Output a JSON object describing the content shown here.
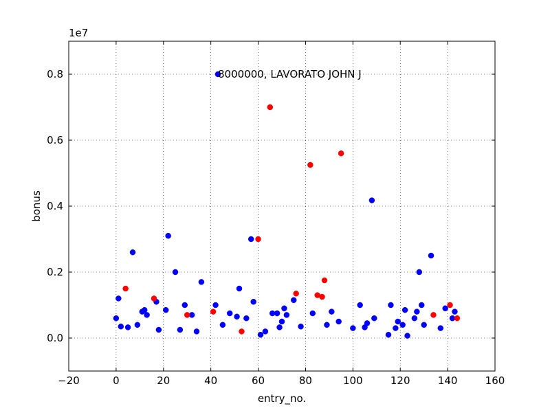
{
  "chart_data": {
    "type": "scatter",
    "title": "",
    "xlabel": "entry_no.",
    "ylabel": "bonus",
    "y_offset_label": "1e7",
    "xlim": [
      -20,
      160
    ],
    "ylim": [
      -1000000,
      9000000
    ],
    "x_ticks": [
      -20,
      0,
      20,
      40,
      60,
      80,
      100,
      120,
      140,
      160
    ],
    "x_tick_labels": [
      "−20",
      "0",
      "20",
      "40",
      "60",
      "80",
      "100",
      "120",
      "140",
      "160"
    ],
    "y_ticks": [
      0,
      2000000,
      4000000,
      6000000,
      8000000
    ],
    "y_tick_labels": [
      "0.0",
      "0.2",
      "0.4",
      "0.6",
      "0.8"
    ],
    "grid": true,
    "annotation": {
      "text": "8000000, LAVORATO JOHN J",
      "x": 43,
      "y": 8000000
    },
    "series": [
      {
        "color": "#0000ff",
        "points": [
          [
            0,
            600000
          ],
          [
            1,
            1200000
          ],
          [
            2,
            350000
          ],
          [
            5,
            325000
          ],
          [
            7,
            2600000
          ],
          [
            9,
            400000
          ],
          [
            11,
            800000
          ],
          [
            12,
            850000
          ],
          [
            13,
            700000
          ],
          [
            17,
            1100000
          ],
          [
            18,
            250000
          ],
          [
            21,
            850000
          ],
          [
            22,
            3100000
          ],
          [
            25,
            2000000
          ],
          [
            27,
            250000
          ],
          [
            29,
            1000000
          ],
          [
            32,
            700000
          ],
          [
            34,
            200000
          ],
          [
            36,
            1700000
          ],
          [
            42,
            1000000
          ],
          [
            43,
            8000000
          ],
          [
            45,
            400000
          ],
          [
            48,
            750000
          ],
          [
            51,
            650000
          ],
          [
            52,
            1500000
          ],
          [
            55,
            600000
          ],
          [
            57,
            3000000
          ],
          [
            58,
            1100000
          ],
          [
            61,
            100000
          ],
          [
            63,
            200000
          ],
          [
            66,
            750000
          ],
          [
            68,
            750000
          ],
          [
            69,
            325000
          ],
          [
            70,
            500000
          ],
          [
            71,
            900000
          ],
          [
            72,
            700000
          ],
          [
            75,
            1150000
          ],
          [
            78,
            350000
          ],
          [
            83,
            750000
          ],
          [
            89,
            400000
          ],
          [
            91,
            800000
          ],
          [
            94,
            500000
          ],
          [
            100,
            300000
          ],
          [
            103,
            1000000
          ],
          [
            105,
            325000
          ],
          [
            106,
            450000
          ],
          [
            108,
            4175000
          ],
          [
            109,
            600000
          ],
          [
            115,
            100000
          ],
          [
            116,
            1000000
          ],
          [
            118,
            300000
          ],
          [
            119,
            500000
          ],
          [
            121,
            400000
          ],
          [
            122,
            850000
          ],
          [
            123,
            70000
          ],
          [
            126,
            600000
          ],
          [
            127,
            800000
          ],
          [
            128,
            2000000
          ],
          [
            129,
            1000000
          ],
          [
            130,
            400000
          ],
          [
            133,
            2500000
          ],
          [
            137,
            300000
          ],
          [
            139,
            900000
          ],
          [
            142,
            600000
          ],
          [
            143,
            800000
          ]
        ]
      },
      {
        "color": "#ff0000",
        "points": [
          [
            4,
            1500000
          ],
          [
            16,
            1200000
          ],
          [
            30,
            700000
          ],
          [
            41,
            800000
          ],
          [
            53,
            200000
          ],
          [
            60,
            3000000
          ],
          [
            65,
            7000000
          ],
          [
            76,
            1350000
          ],
          [
            82,
            5249999
          ],
          [
            85,
            1300000
          ],
          [
            87,
            1250000
          ],
          [
            88,
            1750000
          ],
          [
            95,
            5600000
          ],
          [
            134,
            700000
          ],
          [
            141,
            1000000
          ],
          [
            144,
            600000
          ]
        ]
      }
    ]
  }
}
